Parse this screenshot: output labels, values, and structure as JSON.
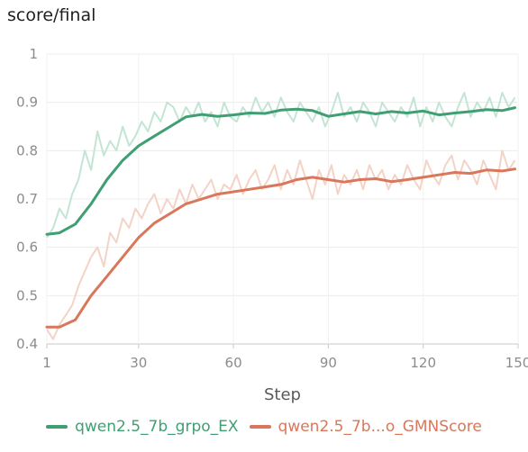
{
  "chart_data": {
    "type": "line",
    "title": "score/final",
    "xlabel": "Step",
    "ylabel": "",
    "xlim": [
      1,
      150
    ],
    "ylim": [
      0.4,
      1.0
    ],
    "x_ticks": [
      1,
      30,
      60,
      90,
      120,
      150
    ],
    "y_ticks": [
      0.4,
      0.5,
      0.6,
      0.7,
      0.8,
      0.9,
      1.0
    ],
    "y_tick_labels": [
      "0.4",
      "0.5",
      "0.6",
      "0.7",
      "0.8",
      "0.9",
      "1"
    ],
    "grid": true,
    "legend_position": "bottom",
    "series": [
      {
        "name": "qwen2.5_7b_grpo_EX",
        "color": "#3f9f73",
        "raw_color": "#c3e5d3",
        "points": [
          [
            1,
            0.627
          ],
          [
            5,
            0.63
          ],
          [
            10,
            0.648
          ],
          [
            15,
            0.69
          ],
          [
            20,
            0.74
          ],
          [
            25,
            0.78
          ],
          [
            30,
            0.81
          ],
          [
            35,
            0.83
          ],
          [
            40,
            0.85
          ],
          [
            45,
            0.87
          ],
          [
            50,
            0.875
          ],
          [
            55,
            0.871
          ],
          [
            60,
            0.874
          ],
          [
            65,
            0.878
          ],
          [
            70,
            0.877
          ],
          [
            75,
            0.884
          ],
          [
            80,
            0.886
          ],
          [
            85,
            0.883
          ],
          [
            90,
            0.871
          ],
          [
            95,
            0.876
          ],
          [
            100,
            0.881
          ],
          [
            105,
            0.876
          ],
          [
            110,
            0.881
          ],
          [
            115,
            0.878
          ],
          [
            120,
            0.882
          ],
          [
            125,
            0.874
          ],
          [
            130,
            0.878
          ],
          [
            135,
            0.881
          ],
          [
            140,
            0.885
          ],
          [
            145,
            0.883
          ],
          [
            149,
            0.889
          ]
        ],
        "raw_points": [
          [
            1,
            0.62
          ],
          [
            3,
            0.64
          ],
          [
            5,
            0.68
          ],
          [
            7,
            0.66
          ],
          [
            9,
            0.71
          ],
          [
            11,
            0.74
          ],
          [
            13,
            0.8
          ],
          [
            15,
            0.76
          ],
          [
            17,
            0.84
          ],
          [
            19,
            0.79
          ],
          [
            21,
            0.82
          ],
          [
            23,
            0.8
          ],
          [
            25,
            0.85
          ],
          [
            27,
            0.81
          ],
          [
            29,
            0.83
          ],
          [
            31,
            0.86
          ],
          [
            33,
            0.84
          ],
          [
            35,
            0.88
          ],
          [
            37,
            0.86
          ],
          [
            39,
            0.9
          ],
          [
            41,
            0.89
          ],
          [
            43,
            0.86
          ],
          [
            45,
            0.89
          ],
          [
            47,
            0.87
          ],
          [
            49,
            0.9
          ],
          [
            51,
            0.86
          ],
          [
            53,
            0.88
          ],
          [
            55,
            0.85
          ],
          [
            57,
            0.9
          ],
          [
            59,
            0.87
          ],
          [
            61,
            0.86
          ],
          [
            63,
            0.89
          ],
          [
            65,
            0.87
          ],
          [
            67,
            0.91
          ],
          [
            69,
            0.88
          ],
          [
            71,
            0.9
          ],
          [
            73,
            0.87
          ],
          [
            75,
            0.91
          ],
          [
            77,
            0.88
          ],
          [
            79,
            0.86
          ],
          [
            81,
            0.9
          ],
          [
            83,
            0.88
          ],
          [
            85,
            0.86
          ],
          [
            87,
            0.89
          ],
          [
            89,
            0.85
          ],
          [
            91,
            0.88
          ],
          [
            93,
            0.92
          ],
          [
            95,
            0.87
          ],
          [
            97,
            0.89
          ],
          [
            99,
            0.86
          ],
          [
            101,
            0.9
          ],
          [
            103,
            0.88
          ],
          [
            105,
            0.85
          ],
          [
            107,
            0.9
          ],
          [
            109,
            0.88
          ],
          [
            111,
            0.86
          ],
          [
            113,
            0.89
          ],
          [
            115,
            0.87
          ],
          [
            117,
            0.91
          ],
          [
            119,
            0.85
          ],
          [
            121,
            0.89
          ],
          [
            123,
            0.86
          ],
          [
            125,
            0.9
          ],
          [
            127,
            0.87
          ],
          [
            129,
            0.85
          ],
          [
            131,
            0.89
          ],
          [
            133,
            0.92
          ],
          [
            135,
            0.87
          ],
          [
            137,
            0.9
          ],
          [
            139,
            0.88
          ],
          [
            141,
            0.91
          ],
          [
            143,
            0.87
          ],
          [
            145,
            0.92
          ],
          [
            147,
            0.89
          ],
          [
            149,
            0.91
          ]
        ]
      },
      {
        "name": "qwen2.5_7b...o_GMNScore",
        "color": "#d8775b",
        "raw_color": "#f4d3c7",
        "points": [
          [
            1,
            0.435
          ],
          [
            5,
            0.435
          ],
          [
            10,
            0.45
          ],
          [
            15,
            0.5
          ],
          [
            20,
            0.54
          ],
          [
            25,
            0.58
          ],
          [
            30,
            0.62
          ],
          [
            35,
            0.65
          ],
          [
            40,
            0.67
          ],
          [
            45,
            0.69
          ],
          [
            50,
            0.7
          ],
          [
            55,
            0.71
          ],
          [
            60,
            0.715
          ],
          [
            65,
            0.72
          ],
          [
            70,
            0.725
          ],
          [
            75,
            0.73
          ],
          [
            80,
            0.74
          ],
          [
            85,
            0.745
          ],
          [
            90,
            0.74
          ],
          [
            95,
            0.735
          ],
          [
            100,
            0.74
          ],
          [
            105,
            0.742
          ],
          [
            110,
            0.736
          ],
          [
            115,
            0.74
          ],
          [
            120,
            0.745
          ],
          [
            125,
            0.75
          ],
          [
            130,
            0.755
          ],
          [
            135,
            0.753
          ],
          [
            140,
            0.76
          ],
          [
            145,
            0.758
          ],
          [
            149,
            0.762
          ]
        ],
        "raw_points": [
          [
            1,
            0.43
          ],
          [
            3,
            0.41
          ],
          [
            5,
            0.44
          ],
          [
            7,
            0.46
          ],
          [
            9,
            0.48
          ],
          [
            11,
            0.52
          ],
          [
            13,
            0.55
          ],
          [
            15,
            0.58
          ],
          [
            17,
            0.6
          ],
          [
            19,
            0.56
          ],
          [
            21,
            0.63
          ],
          [
            23,
            0.61
          ],
          [
            25,
            0.66
          ],
          [
            27,
            0.64
          ],
          [
            29,
            0.68
          ],
          [
            31,
            0.66
          ],
          [
            33,
            0.69
          ],
          [
            35,
            0.71
          ],
          [
            37,
            0.67
          ],
          [
            39,
            0.7
          ],
          [
            41,
            0.68
          ],
          [
            43,
            0.72
          ],
          [
            45,
            0.69
          ],
          [
            47,
            0.73
          ],
          [
            49,
            0.7
          ],
          [
            51,
            0.72
          ],
          [
            53,
            0.74
          ],
          [
            55,
            0.7
          ],
          [
            57,
            0.73
          ],
          [
            59,
            0.72
          ],
          [
            61,
            0.75
          ],
          [
            63,
            0.71
          ],
          [
            65,
            0.74
          ],
          [
            67,
            0.76
          ],
          [
            69,
            0.72
          ],
          [
            71,
            0.74
          ],
          [
            73,
            0.77
          ],
          [
            75,
            0.72
          ],
          [
            77,
            0.76
          ],
          [
            79,
            0.73
          ],
          [
            81,
            0.78
          ],
          [
            83,
            0.74
          ],
          [
            85,
            0.7
          ],
          [
            87,
            0.76
          ],
          [
            89,
            0.73
          ],
          [
            91,
            0.77
          ],
          [
            93,
            0.71
          ],
          [
            95,
            0.75
          ],
          [
            97,
            0.73
          ],
          [
            99,
            0.76
          ],
          [
            101,
            0.72
          ],
          [
            103,
            0.77
          ],
          [
            105,
            0.74
          ],
          [
            107,
            0.76
          ],
          [
            109,
            0.72
          ],
          [
            111,
            0.75
          ],
          [
            113,
            0.73
          ],
          [
            115,
            0.77
          ],
          [
            117,
            0.74
          ],
          [
            119,
            0.72
          ],
          [
            121,
            0.78
          ],
          [
            123,
            0.75
          ],
          [
            125,
            0.73
          ],
          [
            127,
            0.77
          ],
          [
            129,
            0.79
          ],
          [
            131,
            0.74
          ],
          [
            133,
            0.78
          ],
          [
            135,
            0.76
          ],
          [
            137,
            0.73
          ],
          [
            139,
            0.78
          ],
          [
            141,
            0.75
          ],
          [
            143,
            0.72
          ],
          [
            145,
            0.8
          ],
          [
            147,
            0.76
          ],
          [
            149,
            0.78
          ]
        ]
      }
    ]
  }
}
